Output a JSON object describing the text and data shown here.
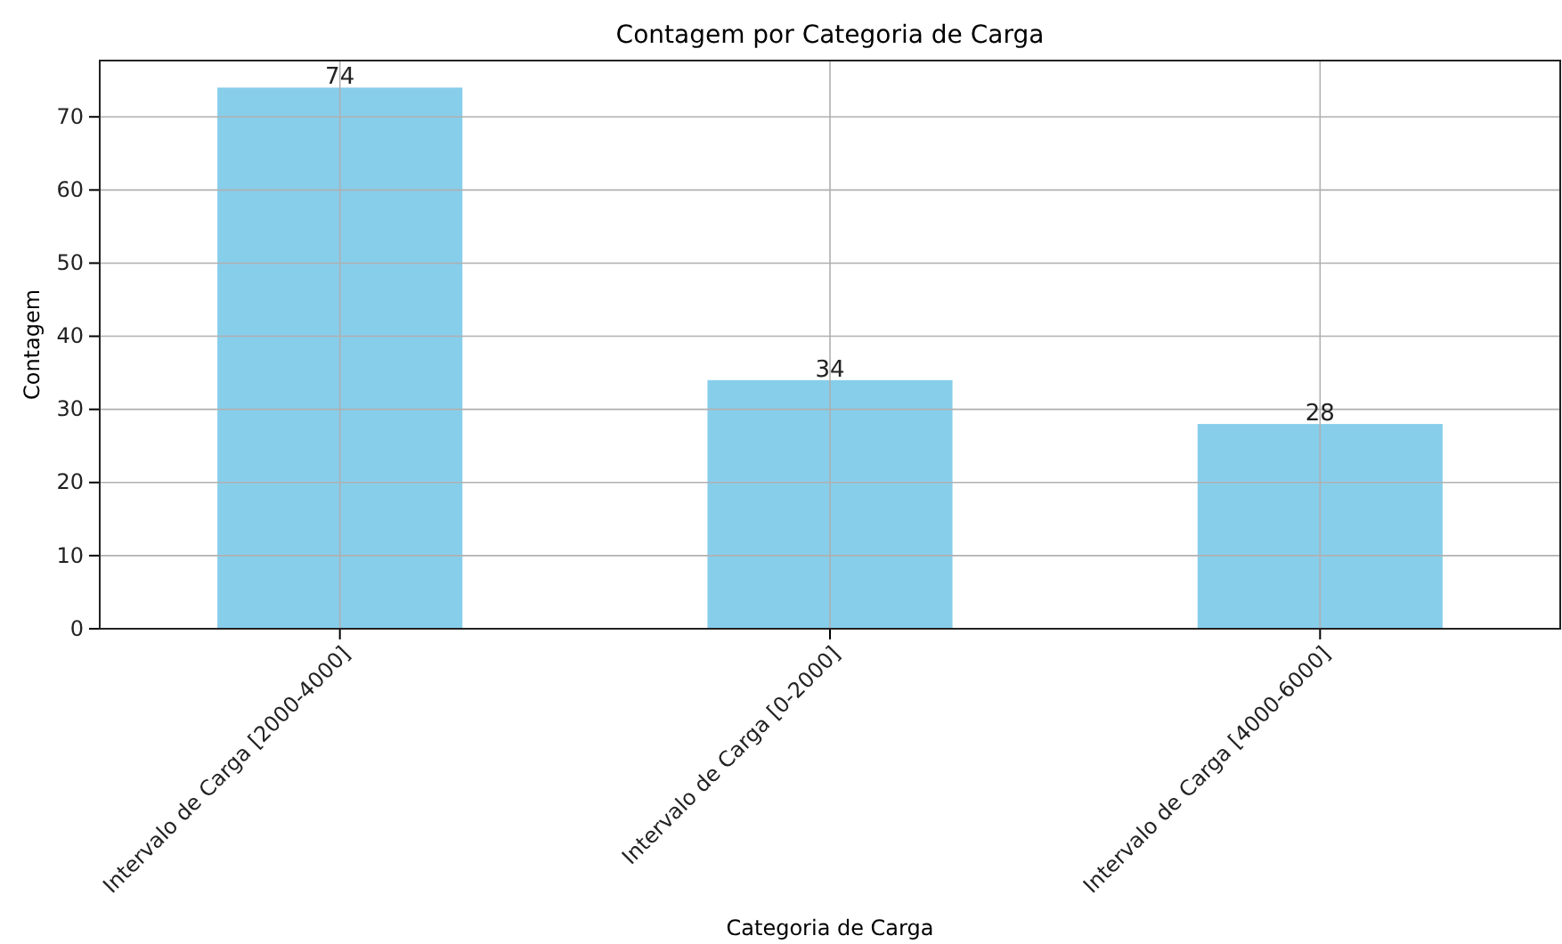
{
  "chart_data": {
    "type": "bar",
    "title": "Contagem por Categoria de Carga",
    "xlabel": "Categoria de Carga",
    "ylabel": "Contagem",
    "categories": [
      "Intervalo de Carga [2000-4000]",
      "Intervalo de Carga [0-2000]",
      "Intervalo de Carga [4000-6000]"
    ],
    "values": [
      74,
      34,
      28
    ],
    "color": "#87ceeb",
    "ylim": [
      0,
      77.7
    ],
    "yticks": [
      0,
      10,
      20,
      30,
      40,
      50,
      60,
      70
    ],
    "grid": true,
    "data_labels": true
  }
}
